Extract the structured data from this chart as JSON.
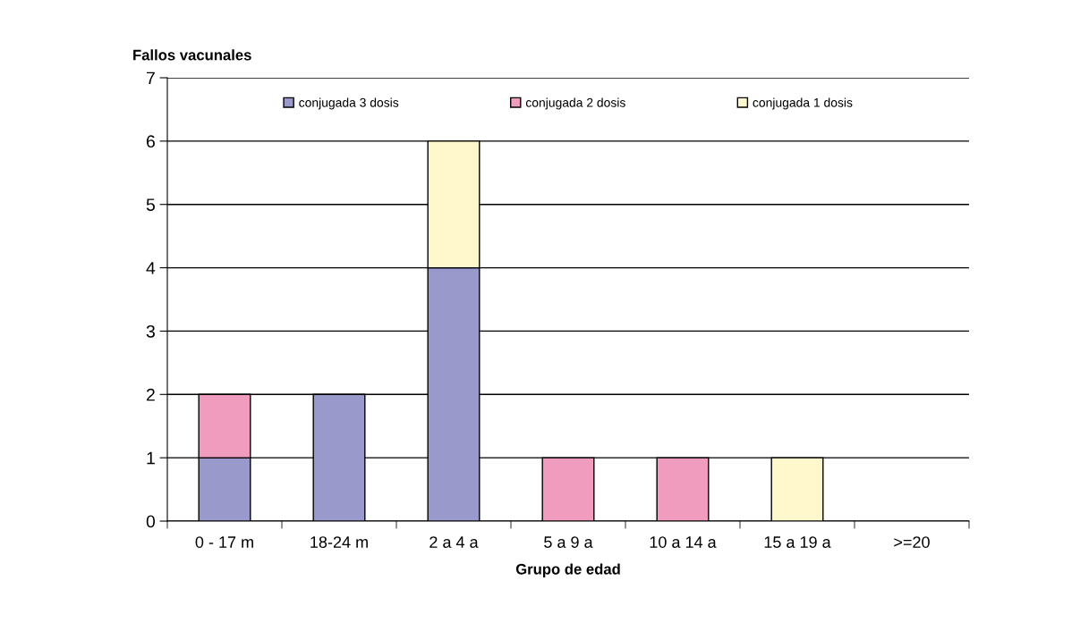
{
  "chart_data": {
    "type": "bar",
    "stacked": true,
    "ylabel": "Fallos vacunales",
    "xlabel": "Grupo de edad",
    "categories": [
      "0 - 17 m",
      "18-24 m",
      "2 a 4 a",
      "5 a 9 a",
      "10 a 14 a",
      "15 a 19 a",
      ">=20"
    ],
    "series": [
      {
        "name": "conjugada 3 dosis",
        "color": "#9999cc",
        "values": [
          1,
          2,
          4,
          0,
          0,
          0,
          0
        ]
      },
      {
        "name": "conjugada 2 dosis",
        "color": "#f09cbf",
        "values": [
          1,
          0,
          0,
          1,
          1,
          0,
          0
        ]
      },
      {
        "name": "conjugada 1 dosis",
        "color": "#fff8cc",
        "values": [
          0,
          0,
          2,
          0,
          0,
          1,
          0
        ]
      }
    ],
    "ylim": [
      0,
      7
    ],
    "yticks": [
      0,
      1,
      2,
      3,
      4,
      5,
      6,
      7
    ],
    "grid": "y",
    "legend": "top"
  }
}
